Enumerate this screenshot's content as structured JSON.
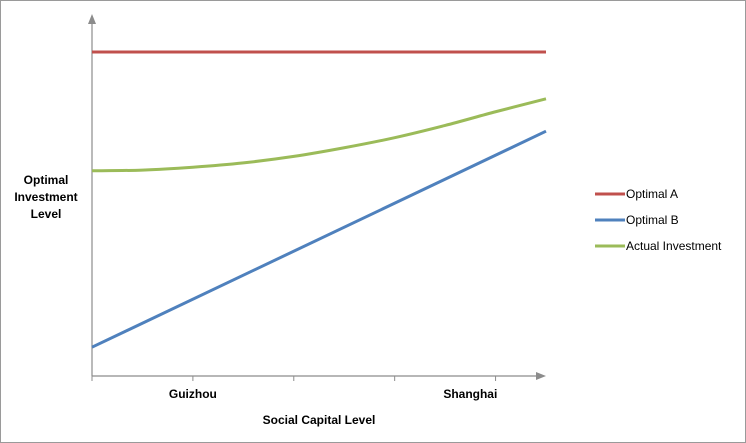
{
  "chart_data": {
    "type": "line",
    "title": "",
    "ylabel_lines": [
      "Optimal",
      "Investment",
      "Level"
    ],
    "xlabel": "Social Capital Level",
    "tick_labels": [
      {
        "x": 1,
        "label": "Guizhou"
      },
      {
        "x": 3.75,
        "label": "Shanghai"
      }
    ],
    "xlim": [
      0,
      4.5
    ],
    "ylim": [
      0,
      100
    ],
    "grid": false,
    "legend_position": "right",
    "series": [
      {
        "name": "Optimal A",
        "color": "#c0504d",
        "x": [
          0,
          4.5
        ],
        "y": [
          90,
          90
        ]
      },
      {
        "name": "Optimal B",
        "color": "#4f81bd",
        "x": [
          0,
          4.5
        ],
        "y": [
          8,
          68
        ]
      },
      {
        "name": "Actual Investment",
        "color": "#9bbb59",
        "x": [
          0,
          0.5,
          1,
          1.5,
          2,
          2.5,
          3,
          3.5,
          4,
          4.5
        ],
        "y": [
          57,
          57.2,
          58,
          59.2,
          61,
          63.4,
          66.2,
          69.6,
          73.4,
          77
        ]
      }
    ]
  }
}
